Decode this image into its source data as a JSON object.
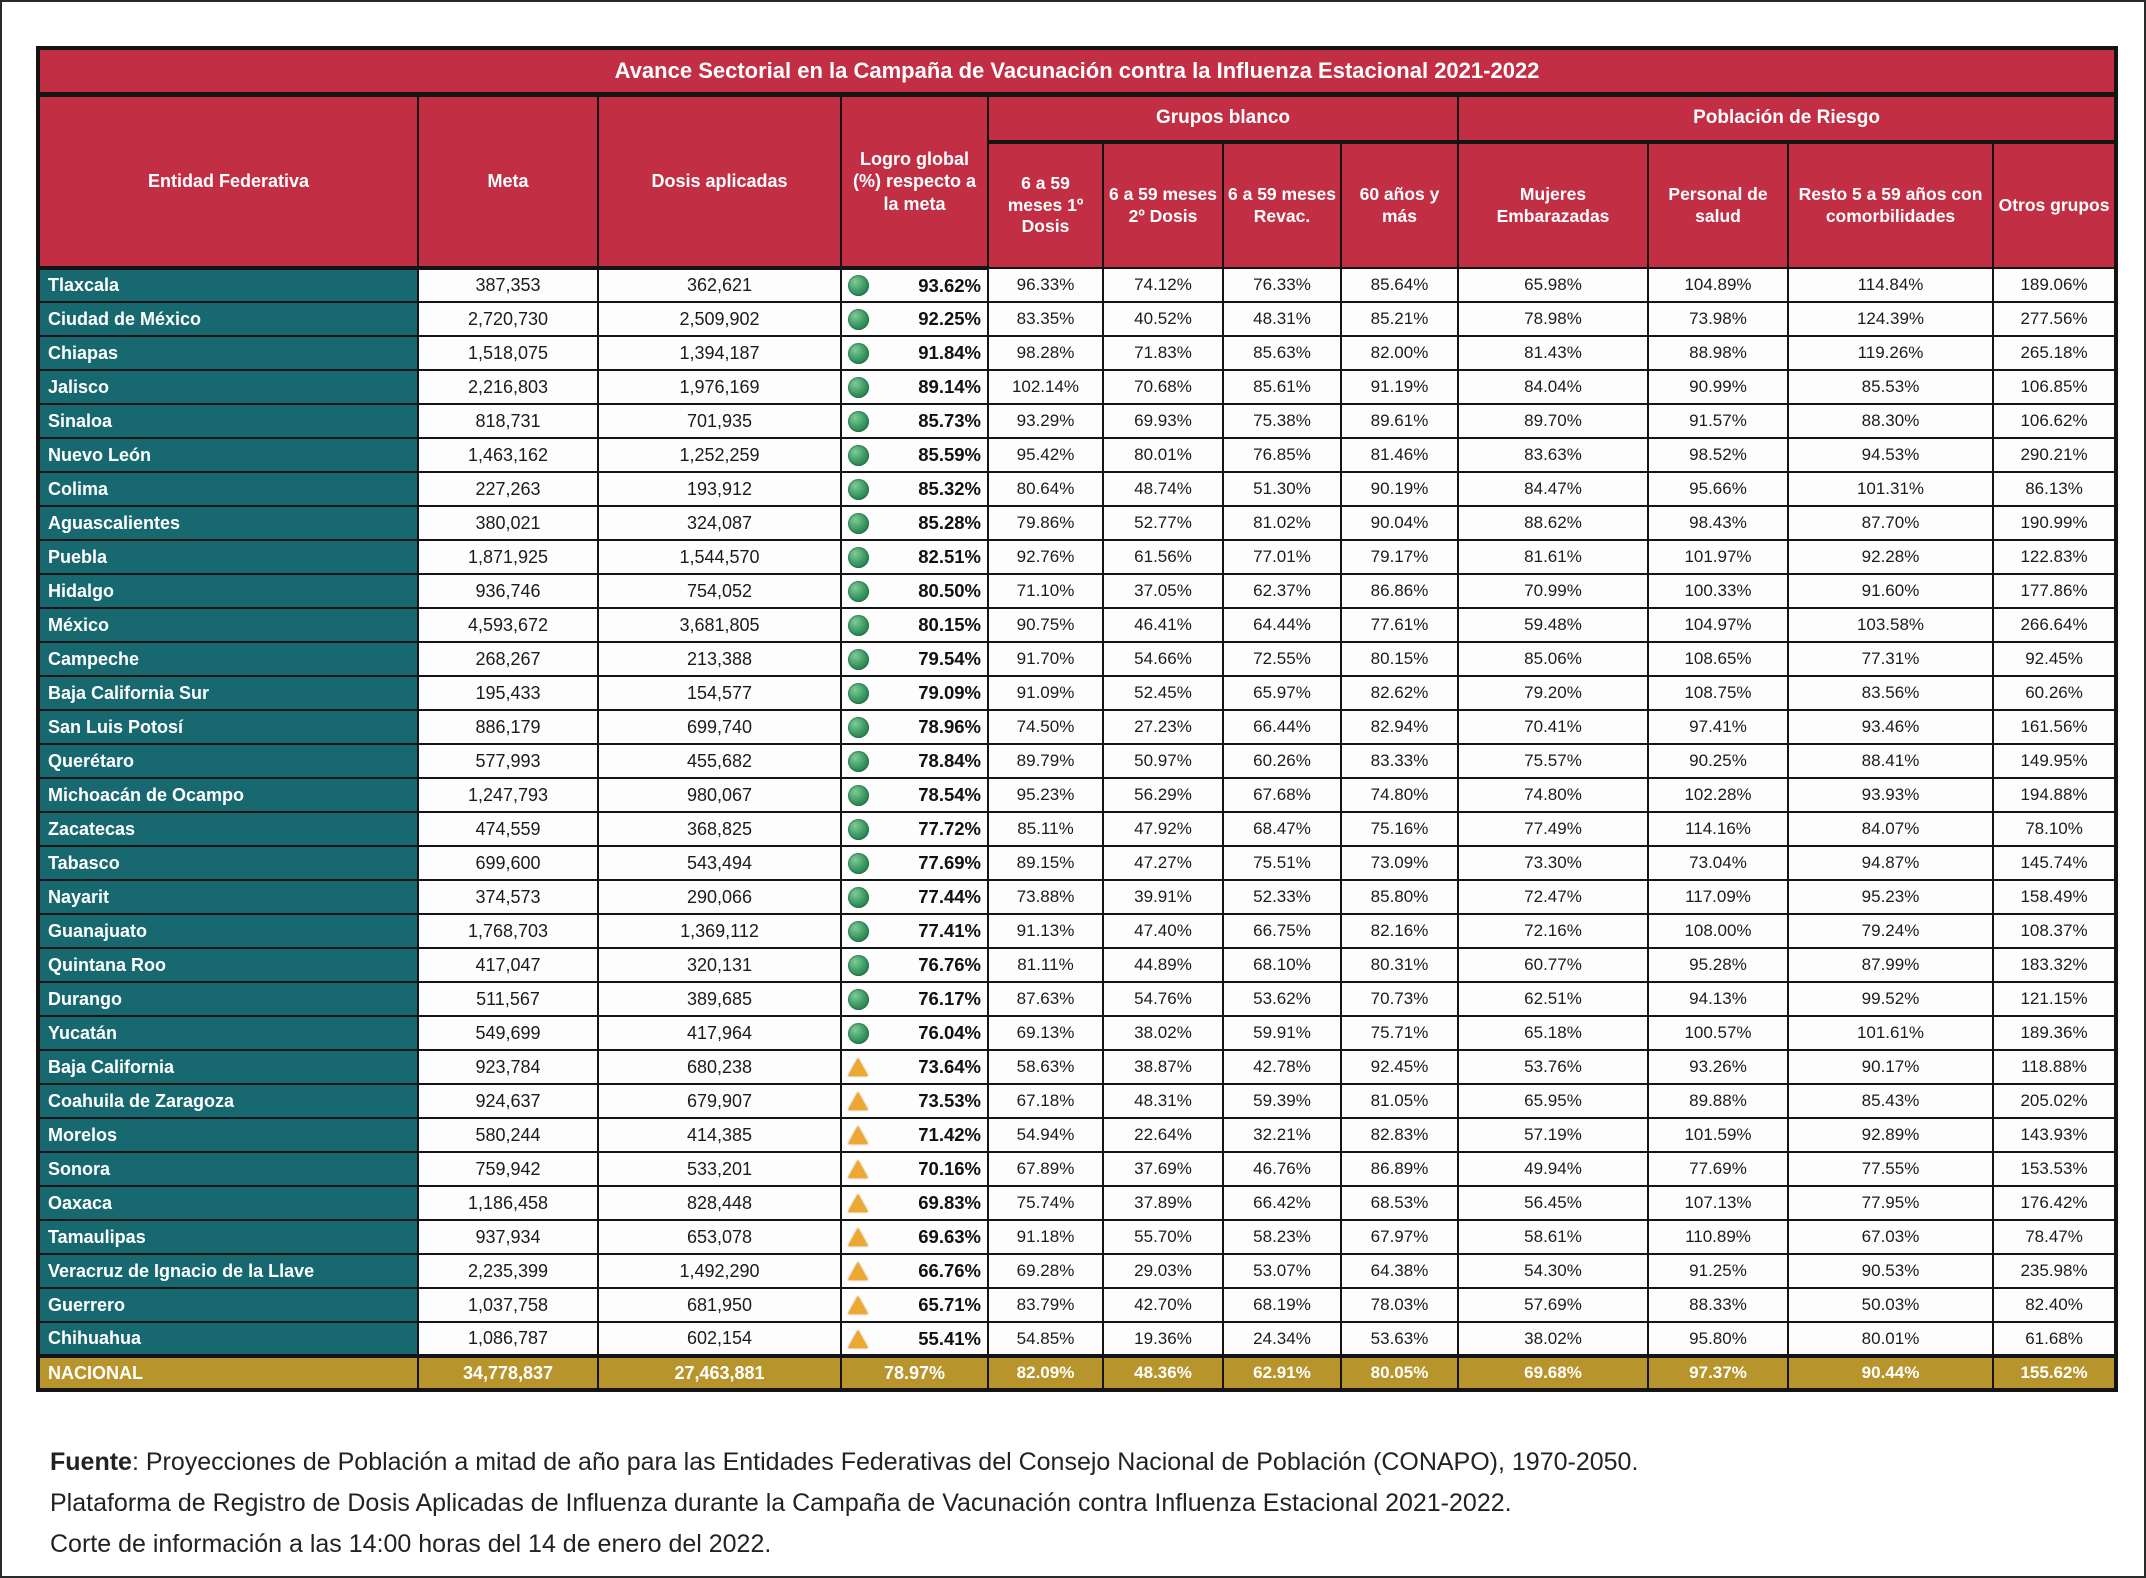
{
  "title": "Avance Sectorial en la Campaña de Vacunación contra la Influenza Estacional 2021-2022",
  "headers": {
    "entidad": "Entidad Federativa",
    "meta": "Meta",
    "dosis": "Dosis aplicadas",
    "logro": "Logro global (%) respecto a la meta",
    "grupos_blanco": "Grupos blanco",
    "poblacion_riesgo": "Población de Riesgo",
    "g1": "6 a 59 meses 1º Dosis",
    "g2": "6 a 59 meses 2º Dosis",
    "g3": "6 a 59 meses Revac.",
    "g4": "60 años y más",
    "r1": "Mujeres Embarazadas",
    "r2": "Personal de salud",
    "r3": "Resto 5 a 59 años con comorbilidades",
    "r4": "Otros grupos"
  },
  "theme": {
    "header_red": "#c22f44",
    "state_teal": "#17696f",
    "national_gold": "#b8942c",
    "status_ok_green": "#37945f",
    "status_warning_amber": "#eda833"
  },
  "rows": [
    {
      "name": "Tlaxcala",
      "meta": "387,353",
      "dosis": "362,621",
      "logro": "93.62%",
      "status": "ok",
      "g1": "96.33%",
      "g2": "74.12%",
      "g3": "76.33%",
      "g4": "85.64%",
      "r1": "65.98%",
      "r2": "104.89%",
      "r3": "114.84%",
      "r4": "189.06%"
    },
    {
      "name": "Ciudad de México",
      "meta": "2,720,730",
      "dosis": "2,509,902",
      "logro": "92.25%",
      "status": "ok",
      "g1": "83.35%",
      "g2": "40.52%",
      "g3": "48.31%",
      "g4": "85.21%",
      "r1": "78.98%",
      "r2": "73.98%",
      "r3": "124.39%",
      "r4": "277.56%"
    },
    {
      "name": "Chiapas",
      "meta": "1,518,075",
      "dosis": "1,394,187",
      "logro": "91.84%",
      "status": "ok",
      "g1": "98.28%",
      "g2": "71.83%",
      "g3": "85.63%",
      "g4": "82.00%",
      "r1": "81.43%",
      "r2": "88.98%",
      "r3": "119.26%",
      "r4": "265.18%"
    },
    {
      "name": "Jalisco",
      "meta": "2,216,803",
      "dosis": "1,976,169",
      "logro": "89.14%",
      "status": "ok",
      "g1": "102.14%",
      "g2": "70.68%",
      "g3": "85.61%",
      "g4": "91.19%",
      "r1": "84.04%",
      "r2": "90.99%",
      "r3": "85.53%",
      "r4": "106.85%"
    },
    {
      "name": "Sinaloa",
      "meta": "818,731",
      "dosis": "701,935",
      "logro": "85.73%",
      "status": "ok",
      "g1": "93.29%",
      "g2": "69.93%",
      "g3": "75.38%",
      "g4": "89.61%",
      "r1": "89.70%",
      "r2": "91.57%",
      "r3": "88.30%",
      "r4": "106.62%"
    },
    {
      "name": "Nuevo León",
      "meta": "1,463,162",
      "dosis": "1,252,259",
      "logro": "85.59%",
      "status": "ok",
      "g1": "95.42%",
      "g2": "80.01%",
      "g3": "76.85%",
      "g4": "81.46%",
      "r1": "83.63%",
      "r2": "98.52%",
      "r3": "94.53%",
      "r4": "290.21%"
    },
    {
      "name": "Colima",
      "meta": "227,263",
      "dosis": "193,912",
      "logro": "85.32%",
      "status": "ok",
      "g1": "80.64%",
      "g2": "48.74%",
      "g3": "51.30%",
      "g4": "90.19%",
      "r1": "84.47%",
      "r2": "95.66%",
      "r3": "101.31%",
      "r4": "86.13%"
    },
    {
      "name": "Aguascalientes",
      "meta": "380,021",
      "dosis": "324,087",
      "logro": "85.28%",
      "status": "ok",
      "g1": "79.86%",
      "g2": "52.77%",
      "g3": "81.02%",
      "g4": "90.04%",
      "r1": "88.62%",
      "r2": "98.43%",
      "r3": "87.70%",
      "r4": "190.99%"
    },
    {
      "name": "Puebla",
      "meta": "1,871,925",
      "dosis": "1,544,570",
      "logro": "82.51%",
      "status": "ok",
      "g1": "92.76%",
      "g2": "61.56%",
      "g3": "77.01%",
      "g4": "79.17%",
      "r1": "81.61%",
      "r2": "101.97%",
      "r3": "92.28%",
      "r4": "122.83%"
    },
    {
      "name": "Hidalgo",
      "meta": "936,746",
      "dosis": "754,052",
      "logro": "80.50%",
      "status": "ok",
      "g1": "71.10%",
      "g2": "37.05%",
      "g3": "62.37%",
      "g4": "86.86%",
      "r1": "70.99%",
      "r2": "100.33%",
      "r3": "91.60%",
      "r4": "177.86%"
    },
    {
      "name": "México",
      "meta": "4,593,672",
      "dosis": "3,681,805",
      "logro": "80.15%",
      "status": "ok",
      "g1": "90.75%",
      "g2": "46.41%",
      "g3": "64.44%",
      "g4": "77.61%",
      "r1": "59.48%",
      "r2": "104.97%",
      "r3": "103.58%",
      "r4": "266.64%"
    },
    {
      "name": "Campeche",
      "meta": "268,267",
      "dosis": "213,388",
      "logro": "79.54%",
      "status": "ok",
      "g1": "91.70%",
      "g2": "54.66%",
      "g3": "72.55%",
      "g4": "80.15%",
      "r1": "85.06%",
      "r2": "108.65%",
      "r3": "77.31%",
      "r4": "92.45%"
    },
    {
      "name": "Baja California Sur",
      "meta": "195,433",
      "dosis": "154,577",
      "logro": "79.09%",
      "status": "ok",
      "g1": "91.09%",
      "g2": "52.45%",
      "g3": "65.97%",
      "g4": "82.62%",
      "r1": "79.20%",
      "r2": "108.75%",
      "r3": "83.56%",
      "r4": "60.26%"
    },
    {
      "name": "San Luis Potosí",
      "meta": "886,179",
      "dosis": "699,740",
      "logro": "78.96%",
      "status": "ok",
      "g1": "74.50%",
      "g2": "27.23%",
      "g3": "66.44%",
      "g4": "82.94%",
      "r1": "70.41%",
      "r2": "97.41%",
      "r3": "93.46%",
      "r4": "161.56%"
    },
    {
      "name": "Querétaro",
      "meta": "577,993",
      "dosis": "455,682",
      "logro": "78.84%",
      "status": "ok",
      "g1": "89.79%",
      "g2": "50.97%",
      "g3": "60.26%",
      "g4": "83.33%",
      "r1": "75.57%",
      "r2": "90.25%",
      "r3": "88.41%",
      "r4": "149.95%"
    },
    {
      "name": "Michoacán de Ocampo",
      "meta": "1,247,793",
      "dosis": "980,067",
      "logro": "78.54%",
      "status": "ok",
      "g1": "95.23%",
      "g2": "56.29%",
      "g3": "67.68%",
      "g4": "74.80%",
      "r1": "74.80%",
      "r2": "102.28%",
      "r3": "93.93%",
      "r4": "194.88%"
    },
    {
      "name": "Zacatecas",
      "meta": "474,559",
      "dosis": "368,825",
      "logro": "77.72%",
      "status": "ok",
      "g1": "85.11%",
      "g2": "47.92%",
      "g3": "68.47%",
      "g4": "75.16%",
      "r1": "77.49%",
      "r2": "114.16%",
      "r3": "84.07%",
      "r4": "78.10%"
    },
    {
      "name": "Tabasco",
      "meta": "699,600",
      "dosis": "543,494",
      "logro": "77.69%",
      "status": "ok",
      "g1": "89.15%",
      "g2": "47.27%",
      "g3": "75.51%",
      "g4": "73.09%",
      "r1": "73.30%",
      "r2": "73.04%",
      "r3": "94.87%",
      "r4": "145.74%"
    },
    {
      "name": "Nayarit",
      "meta": "374,573",
      "dosis": "290,066",
      "logro": "77.44%",
      "status": "ok",
      "g1": "73.88%",
      "g2": "39.91%",
      "g3": "52.33%",
      "g4": "85.80%",
      "r1": "72.47%",
      "r2": "117.09%",
      "r3": "95.23%",
      "r4": "158.49%"
    },
    {
      "name": "Guanajuato",
      "meta": "1,768,703",
      "dosis": "1,369,112",
      "logro": "77.41%",
      "status": "ok",
      "g1": "91.13%",
      "g2": "47.40%",
      "g3": "66.75%",
      "g4": "82.16%",
      "r1": "72.16%",
      "r2": "108.00%",
      "r3": "79.24%",
      "r4": "108.37%"
    },
    {
      "name": "Quintana Roo",
      "meta": "417,047",
      "dosis": "320,131",
      "logro": "76.76%",
      "status": "ok",
      "g1": "81.11%",
      "g2": "44.89%",
      "g3": "68.10%",
      "g4": "80.31%",
      "r1": "60.77%",
      "r2": "95.28%",
      "r3": "87.99%",
      "r4": "183.32%"
    },
    {
      "name": "Durango",
      "meta": "511,567",
      "dosis": "389,685",
      "logro": "76.17%",
      "status": "ok",
      "g1": "87.63%",
      "g2": "54.76%",
      "g3": "53.62%",
      "g4": "70.73%",
      "r1": "62.51%",
      "r2": "94.13%",
      "r3": "99.52%",
      "r4": "121.15%"
    },
    {
      "name": "Yucatán",
      "meta": "549,699",
      "dosis": "417,964",
      "logro": "76.04%",
      "status": "ok",
      "g1": "69.13%",
      "g2": "38.02%",
      "g3": "59.91%",
      "g4": "75.71%",
      "r1": "65.18%",
      "r2": "100.57%",
      "r3": "101.61%",
      "r4": "189.36%"
    },
    {
      "name": "Baja California",
      "meta": "923,784",
      "dosis": "680,238",
      "logro": "73.64%",
      "status": "warning",
      "g1": "58.63%",
      "g2": "38.87%",
      "g3": "42.78%",
      "g4": "92.45%",
      "r1": "53.76%",
      "r2": "93.26%",
      "r3": "90.17%",
      "r4": "118.88%"
    },
    {
      "name": "Coahuila de Zaragoza",
      "meta": "924,637",
      "dosis": "679,907",
      "logro": "73.53%",
      "status": "warning",
      "g1": "67.18%",
      "g2": "48.31%",
      "g3": "59.39%",
      "g4": "81.05%",
      "r1": "65.95%",
      "r2": "89.88%",
      "r3": "85.43%",
      "r4": "205.02%"
    },
    {
      "name": "Morelos",
      "meta": "580,244",
      "dosis": "414,385",
      "logro": "71.42%",
      "status": "warning",
      "g1": "54.94%",
      "g2": "22.64%",
      "g3": "32.21%",
      "g4": "82.83%",
      "r1": "57.19%",
      "r2": "101.59%",
      "r3": "92.89%",
      "r4": "143.93%"
    },
    {
      "name": "Sonora",
      "meta": "759,942",
      "dosis": "533,201",
      "logro": "70.16%",
      "status": "warning",
      "g1": "67.89%",
      "g2": "37.69%",
      "g3": "46.76%",
      "g4": "86.89%",
      "r1": "49.94%",
      "r2": "77.69%",
      "r3": "77.55%",
      "r4": "153.53%"
    },
    {
      "name": "Oaxaca",
      "meta": "1,186,458",
      "dosis": "828,448",
      "logro": "69.83%",
      "status": "warning",
      "g1": "75.74%",
      "g2": "37.89%",
      "g3": "66.42%",
      "g4": "68.53%",
      "r1": "56.45%",
      "r2": "107.13%",
      "r3": "77.95%",
      "r4": "176.42%"
    },
    {
      "name": "Tamaulipas",
      "meta": "937,934",
      "dosis": "653,078",
      "logro": "69.63%",
      "status": "warning",
      "g1": "91.18%",
      "g2": "55.70%",
      "g3": "58.23%",
      "g4": "67.97%",
      "r1": "58.61%",
      "r2": "110.89%",
      "r3": "67.03%",
      "r4": "78.47%"
    },
    {
      "name": "Veracruz de Ignacio de la Llave",
      "meta": "2,235,399",
      "dosis": "1,492,290",
      "logro": "66.76%",
      "status": "warning",
      "g1": "69.28%",
      "g2": "29.03%",
      "g3": "53.07%",
      "g4": "64.38%",
      "r1": "54.30%",
      "r2": "91.25%",
      "r3": "90.53%",
      "r4": "235.98%"
    },
    {
      "name": "Guerrero",
      "meta": "1,037,758",
      "dosis": "681,950",
      "logro": "65.71%",
      "status": "warning",
      "g1": "83.79%",
      "g2": "42.70%",
      "g3": "68.19%",
      "g4": "78.03%",
      "r1": "57.69%",
      "r2": "88.33%",
      "r3": "50.03%",
      "r4": "82.40%"
    },
    {
      "name": "Chihuahua",
      "meta": "1,086,787",
      "dosis": "602,154",
      "logro": "55.41%",
      "status": "warning",
      "g1": "54.85%",
      "g2": "19.36%",
      "g3": "24.34%",
      "g4": "53.63%",
      "r1": "38.02%",
      "r2": "95.80%",
      "r3": "80.01%",
      "r4": "61.68%"
    }
  ],
  "nacional": {
    "name": "NACIONAL",
    "meta": "34,778,837",
    "dosis": "27,463,881",
    "logro": "78.97%",
    "g1": "82.09%",
    "g2": "48.36%",
    "g3": "62.91%",
    "g4": "80.05%",
    "r1": "69.68%",
    "r2": "97.37%",
    "r3": "90.44%",
    "r4": "155.62%"
  },
  "footer": {
    "source_label": "Fuente",
    "line1": ": Proyecciones de Población a mitad de año para las Entidades Federativas del Consejo Nacional de Población (CONAPO), 1970-2050.",
    "line2": "Plataforma de Registro de Dosis Aplicadas de Influenza durante la Campaña de Vacunación contra Influenza Estacional 2021-2022.",
    "line3": "Corte de información a las 14:00 horas del 14 de enero del 2022."
  }
}
